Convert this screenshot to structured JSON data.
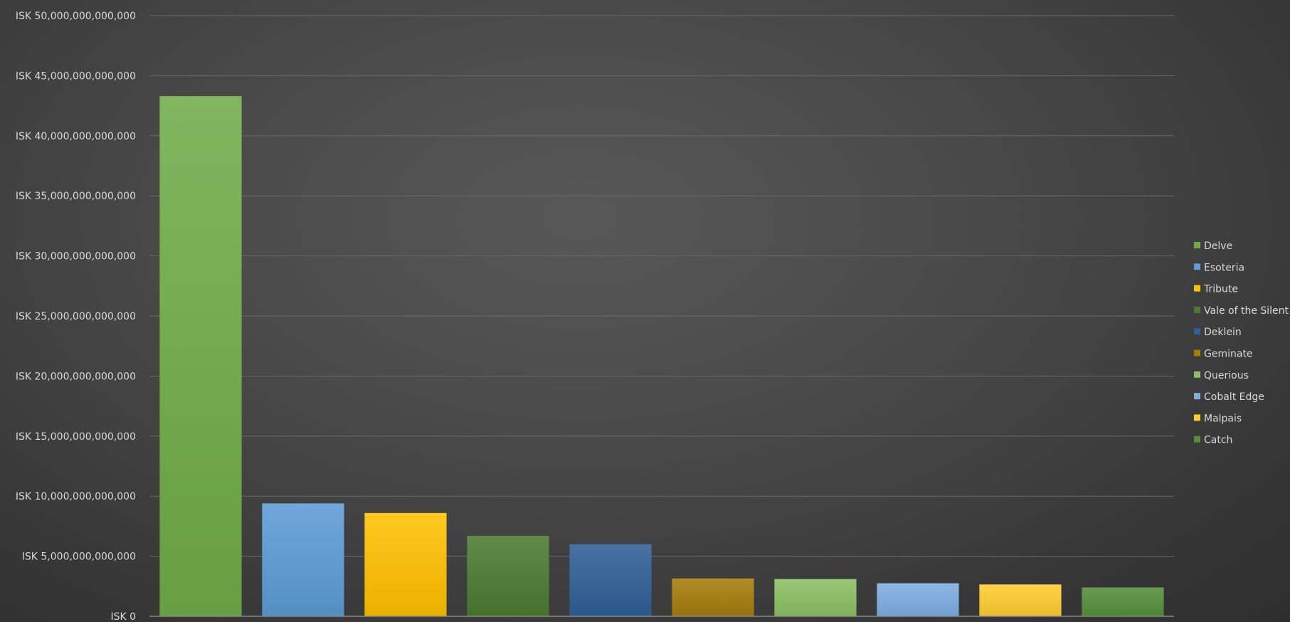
{
  "chart_data": {
    "type": "bar",
    "categories": [
      "Delve",
      "Esoteria",
      "Tribute",
      "Vale of the Silent",
      "Deklein",
      "Geminate",
      "Querious",
      "Cobalt Edge",
      "Malpais",
      "Catch"
    ],
    "values": [
      43300000000000,
      9400000000000,
      8600000000000,
      6700000000000,
      6000000000000,
      3150000000000,
      3100000000000,
      2750000000000,
      2650000000000,
      2400000000000
    ],
    "colors": [
      "#6fac47",
      "#5b9bd5",
      "#ffc000",
      "#4a7a30",
      "#2e5f96",
      "#a67c0a",
      "#8cc064",
      "#7daee2",
      "#ffcc2f",
      "#548f3a"
    ],
    "ylim": [
      0,
      50000000000000
    ],
    "yticks": [
      0,
      5000000000000,
      10000000000000,
      15000000000000,
      20000000000000,
      25000000000000,
      30000000000000,
      35000000000000,
      40000000000000,
      45000000000000,
      50000000000000
    ],
    "ytick_labels": [
      "ISK 0",
      "ISK 5,000,000,000,000",
      "ISK 10,000,000,000,000",
      "ISK 15,000,000,000,000",
      "ISK 20,000,000,000,000",
      "ISK 25,000,000,000,000",
      "ISK 30,000,000,000,000",
      "ISK 35,000,000,000,000",
      "ISK 40,000,000,000,000",
      "ISK 45,000,000,000,000",
      "ISK 50,000,000,000,000"
    ],
    "grid": true,
    "legend": {
      "position": "right",
      "entries": [
        "Delve",
        "Esoteria",
        "Tribute",
        "Vale of the Silent",
        "Deklein",
        "Geminate",
        "Querious",
        "Cobalt Edge",
        "Malpais",
        "Catch"
      ]
    },
    "title": "",
    "xlabel": "",
    "ylabel": ""
  }
}
